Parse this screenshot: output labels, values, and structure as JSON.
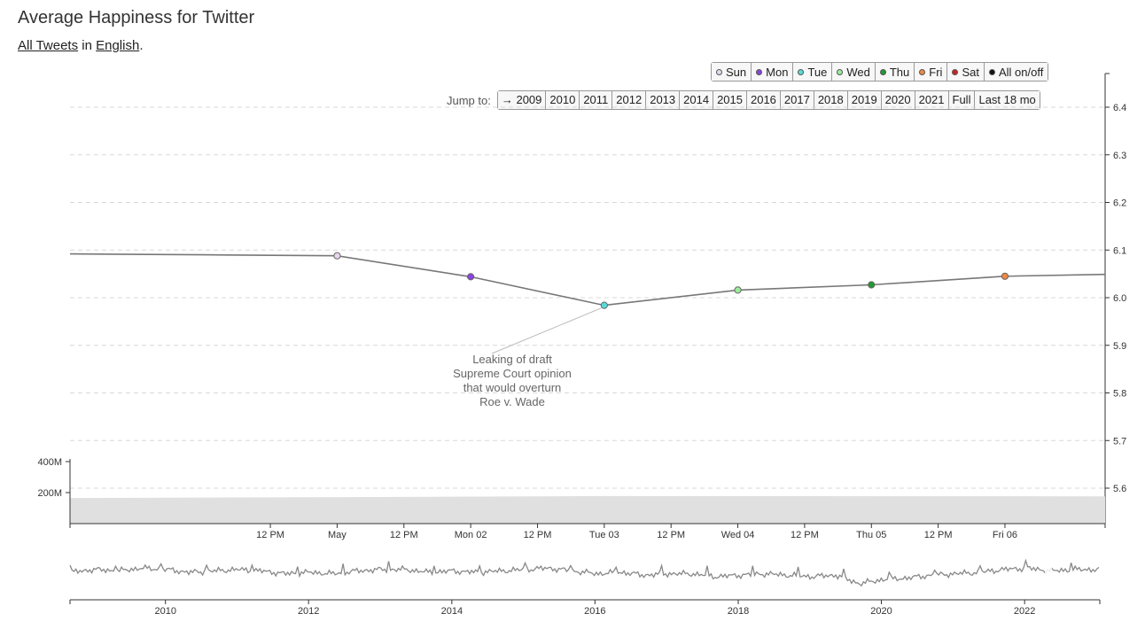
{
  "page": {
    "title": "Average Happiness for Twitter",
    "subtitle_link1": "All Tweets",
    "subtitle_mid": " in ",
    "subtitle_link2": "English",
    "subtitle_end": "."
  },
  "day_toggles": [
    {
      "label": "Sun",
      "color": "#e8d6f0"
    },
    {
      "label": "Mon",
      "color": "#8844dd"
    },
    {
      "label": "Tue",
      "color": "#55dddd"
    },
    {
      "label": "Wed",
      "color": "#99ee99"
    },
    {
      "label": "Thu",
      "color": "#229933"
    },
    {
      "label": "Fri",
      "color": "#ee8844"
    },
    {
      "label": "Sat",
      "color": "#cc2222"
    },
    {
      "label": "All on/off",
      "color": "#111111"
    }
  ],
  "jump": {
    "label": "Jump to:",
    "buttons": [
      "→ 2009",
      "2010",
      "2011",
      "2012",
      "2013",
      "2014",
      "2015",
      "2016",
      "2017",
      "2018",
      "2019",
      "2020",
      "2021",
      "Full",
      "Last 18 mo"
    ]
  },
  "chart_data": [
    {
      "type": "line",
      "yaxis_side": "right",
      "ylim": [
        5.55,
        6.45
      ],
      "yticks": [
        5.6,
        5.7,
        5.8,
        5.9,
        6.0,
        6.1,
        6.2,
        6.3,
        6.4
      ],
      "ytick_labels": [
        "5.6",
        "5.7",
        "5.8",
        "5.9",
        "6.0",
        "6.1",
        "6.2",
        "6.3",
        "6.4"
      ],
      "grid": true,
      "x": [
        "2022-04-29 00:00",
        "2022-04-30 00:00",
        "2022-05-01 00:00",
        "2022-05-02 00:00",
        "2022-05-03 00:00",
        "2022-05-04 00:00",
        "2022-05-05 00:00",
        "2022-05-06 00:00",
        "2022-05-06 18:00"
      ],
      "xlim": [
        "2022-04-29 00:00",
        "2022-05-06 18:00"
      ],
      "xticks": [
        "2022-04-30 12:00",
        "2022-05-01 00:00",
        "2022-05-01 12:00",
        "2022-05-02 00:00",
        "2022-05-02 12:00",
        "2022-05-03 00:00",
        "2022-05-03 12:00",
        "2022-05-04 00:00",
        "2022-05-04 12:00",
        "2022-05-05 00:00",
        "2022-05-05 12:00",
        "2022-05-06 00:00"
      ],
      "xtick_labels": [
        "12 PM",
        "May",
        "12 PM",
        "Mon 02",
        "12 PM",
        "Tue 03",
        "12 PM",
        "Wed 04",
        "12 PM",
        "Thu 05",
        "12 PM",
        "Fri 06"
      ],
      "values": [
        6.092,
        6.09,
        6.088,
        6.044,
        5.984,
        6.016,
        6.027,
        6.045,
        6.049
      ],
      "points": [
        {
          "x": "2022-05-01 00:00",
          "y": 6.088,
          "day": "Sun",
          "color": "#e8d6f0"
        },
        {
          "x": "2022-05-02 00:00",
          "y": 6.044,
          "day": "Mon",
          "color": "#8844dd"
        },
        {
          "x": "2022-05-03 00:00",
          "y": 5.984,
          "day": "Tue",
          "color": "#55dddd"
        },
        {
          "x": "2022-05-04 00:00",
          "y": 6.016,
          "day": "Wed",
          "color": "#99ee99"
        },
        {
          "x": "2022-05-05 00:00",
          "y": 6.027,
          "day": "Thu",
          "color": "#229933"
        },
        {
          "x": "2022-05-06 00:00",
          "y": 6.045,
          "day": "Fri",
          "color": "#ee8844"
        }
      ],
      "annotation": {
        "x": "2022-05-03 00:00",
        "y": 5.984,
        "lines": [
          "Leaking of draft",
          "Supreme Court opinion",
          "that would overturn",
          "Roe v. Wade"
        ]
      }
    },
    {
      "type": "area",
      "yaxis_side": "left",
      "ylim": [
        0,
        400
      ],
      "yticks": [
        200,
        400
      ],
      "ytick_labels": [
        "200M",
        "400M"
      ],
      "x": [
        "2022-04-29 00:00",
        "2022-05-01 12:00",
        "2022-05-03 00:00",
        "2022-05-06 18:00"
      ],
      "values": [
        165,
        172,
        178,
        176
      ]
    },
    {
      "type": "line",
      "xlim": [
        "2008-09-01",
        "2023-01-15"
      ],
      "xticks": [
        "2010-01-01",
        "2012-01-01",
        "2014-01-01",
        "2016-01-01",
        "2018-01-01",
        "2020-01-01",
        "2022-01-01"
      ],
      "xtick_labels": [
        "2010",
        "2012",
        "2014",
        "2016",
        "2018",
        "2020",
        "2022"
      ],
      "ylim": [
        5.7,
        6.4
      ],
      "values": [
        6.0,
        6.02,
        6.01,
        6.03,
        6.02,
        6.0,
        6.01,
        6.02,
        6.01,
        5.99,
        6.0,
        5.99,
        6.01,
        6.02,
        6.02,
        6.0,
        6.01,
        6.0,
        6.01,
        6.02,
        6.03,
        6.01,
        5.99,
        6.0,
        5.98,
        5.99,
        5.99,
        5.97,
        5.98,
        5.99,
        5.98,
        5.97,
        5.98,
        5.92,
        5.95,
        5.96,
        5.98,
        5.99,
        6.0,
        6.02,
        6.03,
        6.01,
        6.02,
        6.02
      ]
    }
  ]
}
